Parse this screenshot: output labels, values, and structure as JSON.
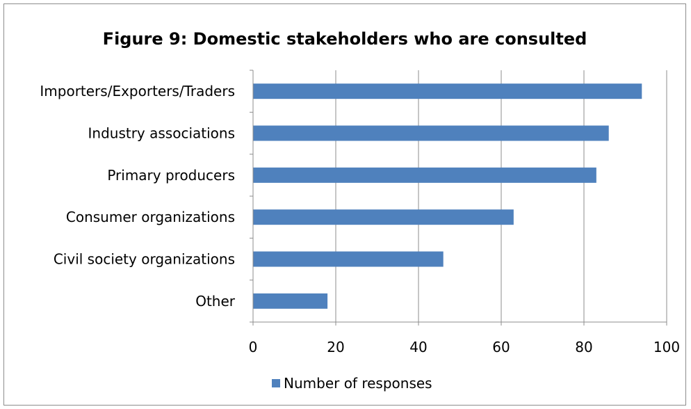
{
  "chart_data": {
    "type": "bar",
    "orientation": "horizontal",
    "title": "Figure 9: Domestic stakeholders who are consulted",
    "categories": [
      "Importers/Exporters/Traders",
      "Industry associations",
      "Primary producers",
      "Consumer organizations",
      "Civil society organizations",
      "Other"
    ],
    "series": [
      {
        "name": "Number of responses",
        "values": [
          94,
          86,
          83,
          63,
          46,
          18
        ],
        "color": "#4f81bd"
      }
    ],
    "xlim": [
      0,
      100
    ],
    "xticks": [
      0,
      20,
      40,
      60,
      80,
      100
    ],
    "xlabel": "",
    "ylabel": "",
    "grid": "vertical",
    "legend_position": "bottom"
  }
}
